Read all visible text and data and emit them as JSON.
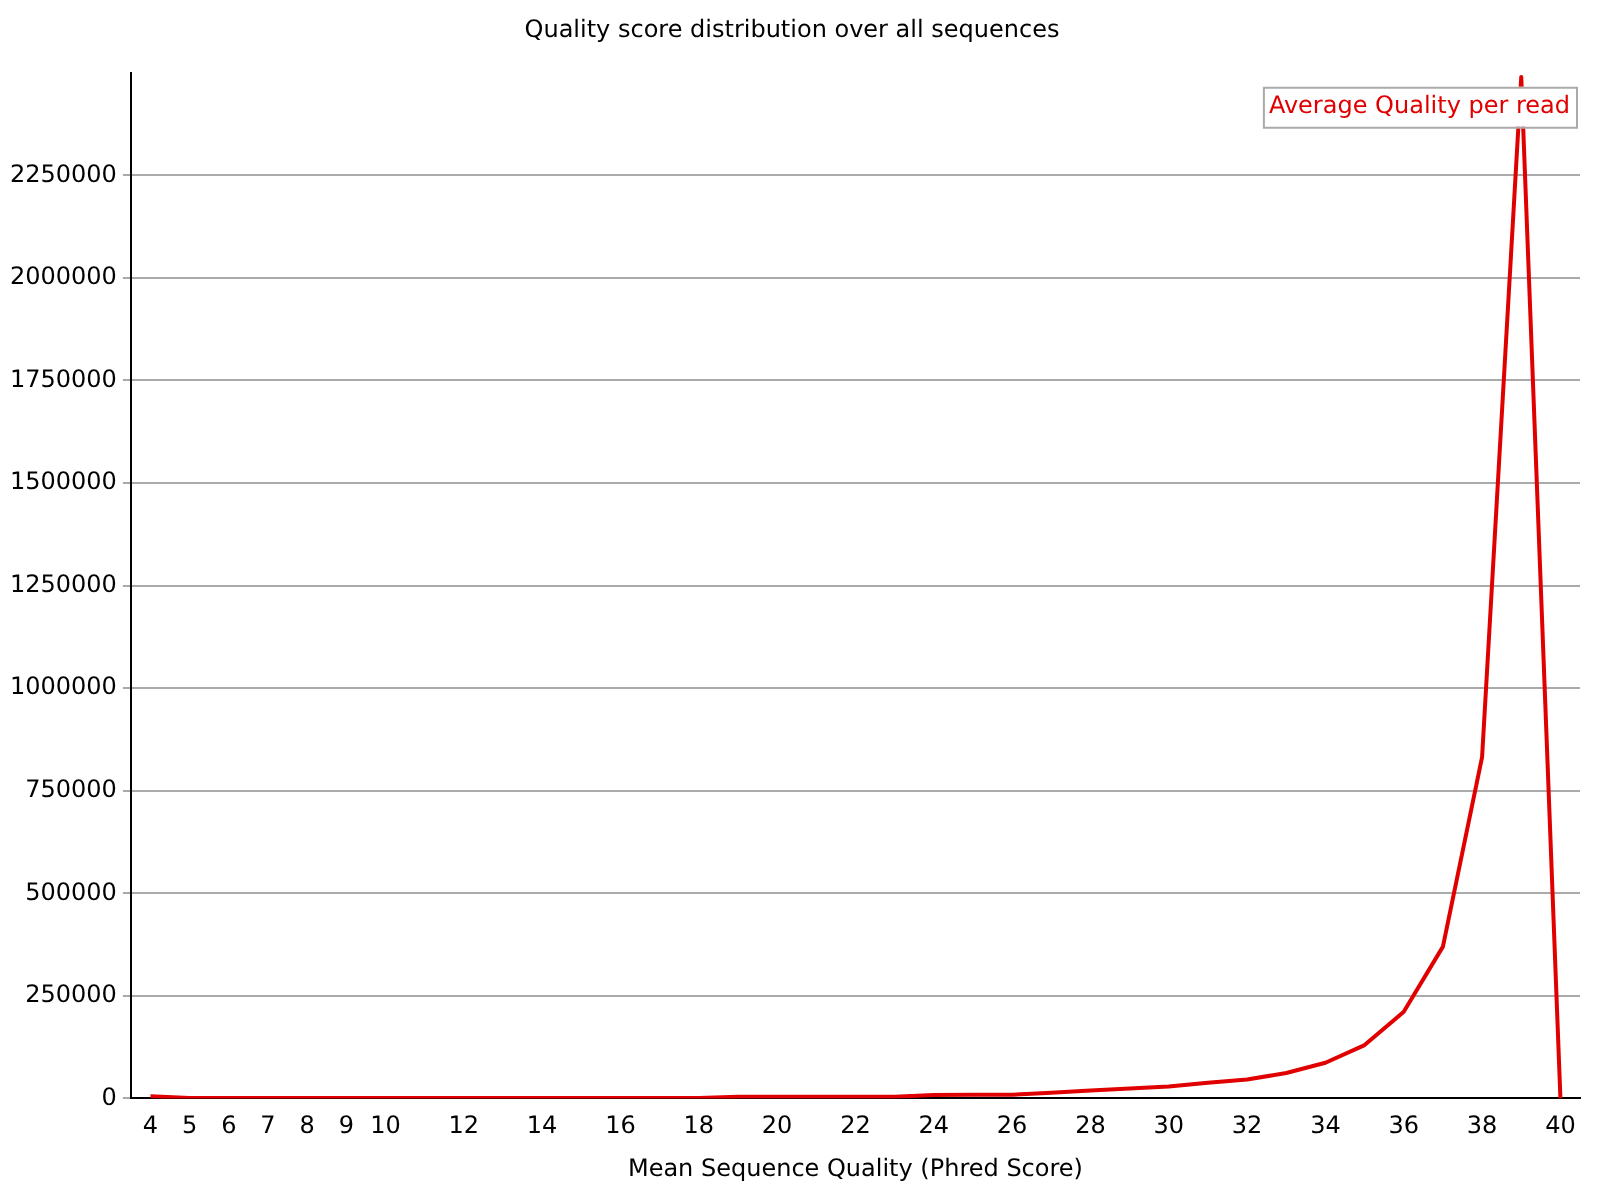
{
  "chart_data": {
    "type": "line",
    "title": "Quality score distribution over all sequences",
    "xlabel": "Mean Sequence Quality (Phred Score)",
    "categories": [
      "4",
      "5",
      "6",
      "7",
      "8",
      "9",
      "10",
      null,
      "12",
      null,
      "14",
      null,
      "16",
      null,
      "18",
      null,
      "20",
      null,
      "22",
      null,
      "24",
      null,
      "26",
      null,
      "28",
      null,
      "30",
      null,
      "32",
      null,
      "34",
      null,
      "36",
      null,
      "38",
      null,
      "40"
    ],
    "series": [
      {
        "name": "Average Quality per read",
        "color": "#e00000",
        "values": [
          5000,
          1000,
          1000,
          1000,
          1000,
          1000,
          1000,
          1000,
          1000,
          1000,
          1000,
          1000,
          1000,
          1000,
          1000,
          4000,
          4000,
          4000,
          4000,
          4000,
          8000,
          9000,
          9000,
          14000,
          19000,
          24000,
          29000,
          38000,
          46000,
          62000,
          87000,
          130000,
          211000,
          370000,
          832000,
          2490000,
          0
        ]
      }
    ],
    "ylim": [
      0,
      2500000
    ],
    "yticks": [
      0,
      250000,
      500000,
      750000,
      1000000,
      1250000,
      1500000,
      1750000,
      2000000,
      2250000
    ],
    "grid": "y",
    "legend": "top right",
    "marker": "none"
  }
}
